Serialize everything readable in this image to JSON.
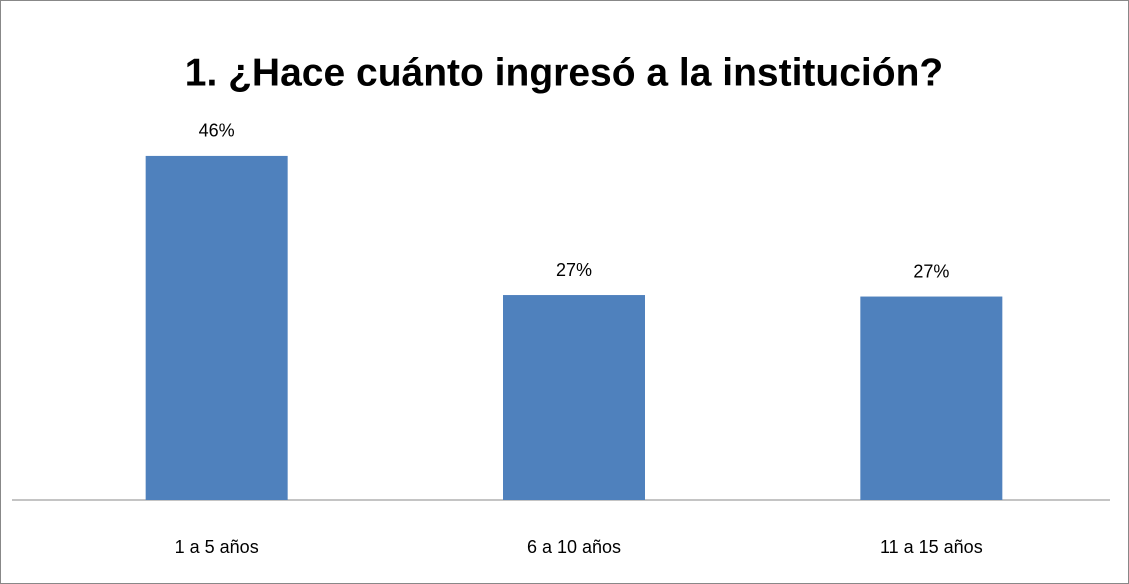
{
  "chart_data": {
    "type": "bar",
    "title": "1. ¿Hace cuánto ingresó a la institución?",
    "categories": [
      "1 a 5 años",
      "6 a 10 años",
      "11 a 15 años"
    ],
    "values": [
      46,
      27.4,
      27.2
    ],
    "value_labels": [
      "46%",
      "27%",
      "27%"
    ],
    "color": "#4f81bd",
    "ylim": [
      0,
      50
    ]
  }
}
